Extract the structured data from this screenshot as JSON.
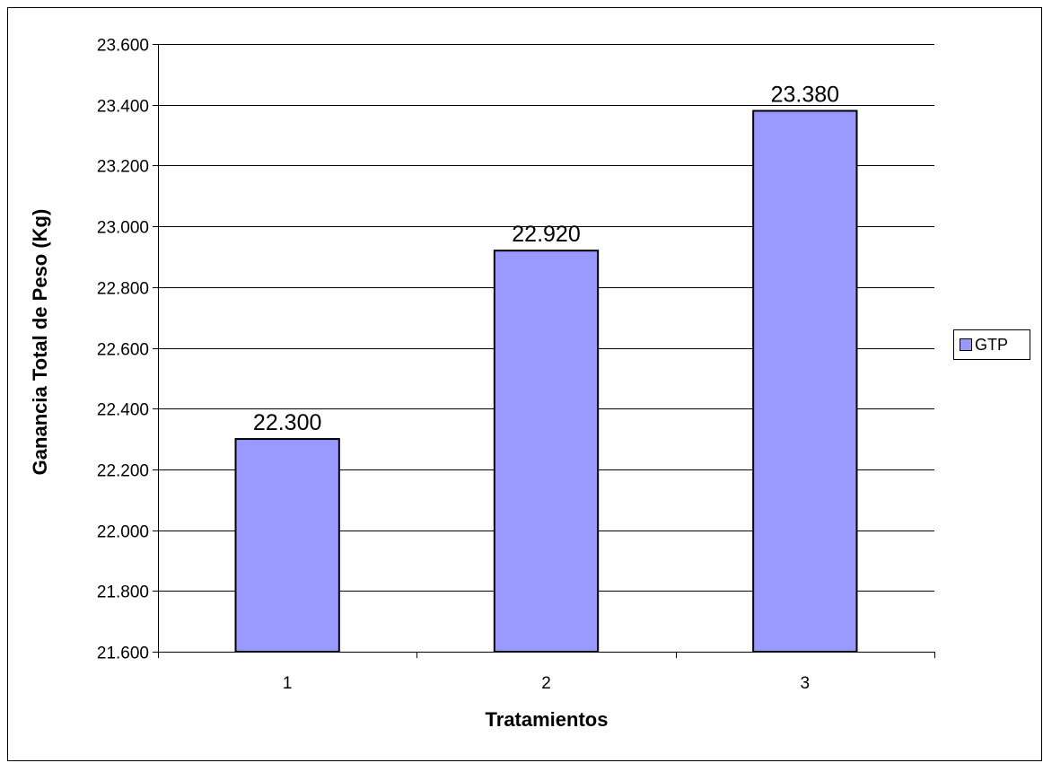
{
  "colors": {
    "bar_fill": "#9999ff",
    "bar_stroke": "#000000",
    "gridline": "#000000",
    "background": "#ffffff"
  },
  "legend": {
    "label": "GTP"
  },
  "chart_data": {
    "type": "bar",
    "xlabel": "Tratamientos",
    "ylabel": "Ganancia Total de Peso (Kg)",
    "categories": [
      "1",
      "2",
      "3"
    ],
    "series": [
      {
        "name": "GTP",
        "values": [
          22.3,
          22.92,
          23.38
        ]
      }
    ],
    "data_labels": [
      "22.300",
      "22.920",
      "23.380"
    ],
    "ylim": [
      21.6,
      23.6
    ],
    "y_ticks": [
      21.6,
      21.8,
      22.0,
      22.2,
      22.4,
      22.6,
      22.8,
      23.0,
      23.2,
      23.4,
      23.6
    ],
    "y_tick_labels": [
      "21.600",
      "21.800",
      "22.000",
      "22.200",
      "22.400",
      "22.600",
      "22.800",
      "23.000",
      "23.200",
      "23.400",
      "23.600"
    ],
    "grid": true,
    "legend_position": "right"
  }
}
